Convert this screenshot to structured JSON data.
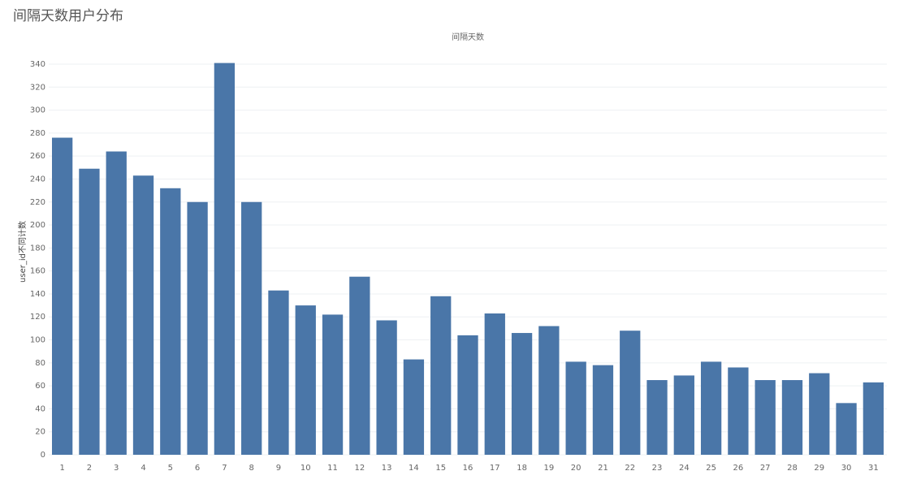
{
  "chart_data": {
    "type": "bar",
    "title": "间隔天数用户分布",
    "subtitle": "间隔天数",
    "y_label": "user_id不同计数",
    "categories": [
      "1",
      "2",
      "3",
      "4",
      "5",
      "6",
      "7",
      "8",
      "9",
      "10",
      "11",
      "12",
      "13",
      "14",
      "15",
      "16",
      "17",
      "18",
      "19",
      "20",
      "21",
      "22",
      "23",
      "24",
      "25",
      "26",
      "27",
      "28",
      "29",
      "30",
      "31"
    ],
    "values": [
      276,
      249,
      264,
      243,
      232,
      220,
      341,
      220,
      143,
      130,
      122,
      155,
      117,
      83,
      138,
      104,
      123,
      106,
      112,
      81,
      78,
      108,
      65,
      69,
      81,
      76,
      65,
      65,
      71,
      45,
      63
    ],
    "color": "#4a76a8",
    "ylim": [
      0,
      340
    ],
    "yticks": [
      0,
      20,
      40,
      60,
      80,
      100,
      120,
      140,
      160,
      180,
      200,
      220,
      240,
      260,
      280,
      300,
      320,
      340
    ],
    "grid": true
  }
}
